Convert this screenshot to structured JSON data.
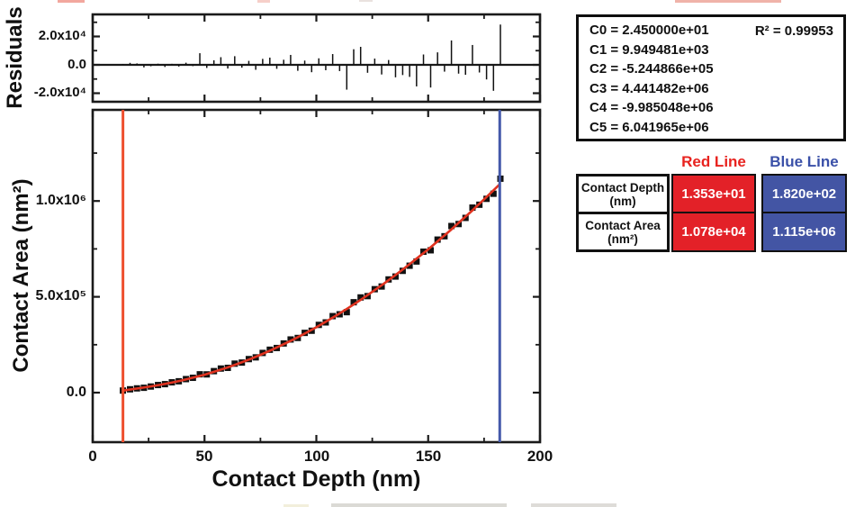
{
  "colors": {
    "frame": "#1a1a1a",
    "red_fill": "#e32128",
    "blue_fill": "#4355a4",
    "red_text": "#e8231f",
    "blue_text": "#3a50a8",
    "fit_line": "#e0321f",
    "red_vline": "#ee4f2e",
    "blue_vline": "#4459aa"
  },
  "chart_data": [
    {
      "type": "bar",
      "name": "fit-residuals",
      "ylabel": "Residuals",
      "y_tick_labels": [
        "2.0x10⁴",
        "0.0",
        "-2.0x10⁴"
      ],
      "y_tick_values": [
        20000,
        0,
        -20000
      ],
      "y_minor_tick_values": [
        30000,
        10000,
        -10000
      ],
      "xlim": [
        0,
        200
      ],
      "ylim": [
        -26000,
        35500
      ],
      "grid": false,
      "x": [
        13.5,
        16.7,
        19.8,
        22.9,
        26,
        29.2,
        32.3,
        35.4,
        38.5,
        41.7,
        44.8,
        47.9,
        51,
        54.2,
        57.3,
        60.4,
        63.5,
        66.7,
        69.8,
        72.9,
        76,
        79.2,
        82.3,
        85.4,
        88.5,
        91.7,
        94.8,
        97.9,
        101.1,
        104.2,
        107.3,
        110.4,
        113.6,
        116.7,
        119.8,
        122.9,
        126.1,
        129.2,
        132.3,
        135.4,
        138.6,
        141.7,
        144.8,
        147.9,
        151.1,
        154.2,
        157.3,
        160.4,
        163.6,
        166.7,
        169.8,
        172.9,
        176.1,
        179.2,
        182.3
      ],
      "values": [
        600,
        1400,
        1000,
        -1800,
        -1000,
        800,
        -1500,
        700,
        -1200,
        1500,
        -900,
        8200,
        -2200,
        3200,
        5400,
        -2600,
        6100,
        -2000,
        2800,
        -3500,
        4200,
        5100,
        -2800,
        3600,
        7000,
        -4200,
        3000,
        -5200,
        4600,
        -3800,
        7600,
        -4400,
        -17500,
        11000,
        12700,
        -5600,
        4400,
        -6800,
        3400,
        -8800,
        -7200,
        -8500,
        -15200,
        7300,
        -16000,
        8800,
        -4800,
        17200,
        -6200,
        -7000,
        14000,
        -5400,
        -10300,
        -18300,
        28400
      ]
    },
    {
      "type": "scatter",
      "name": "contact-area-vs-contact-depth",
      "xlabel": "Contact Depth (nm)",
      "ylabel": "Contact Area (nm²)",
      "x_tick_labels": [
        "0",
        "50",
        "100",
        "150",
        "200"
      ],
      "x_tick_values": [
        0,
        50,
        100,
        150,
        200
      ],
      "x_minor_tick_values": [
        25,
        75,
        125,
        175
      ],
      "y_tick_labels": [
        "1.0x10⁶",
        "5.0x10⁵",
        "0.0"
      ],
      "y_tick_values": [
        1000000,
        500000,
        0
      ],
      "y_minor_tick_values": [
        250000,
        750000,
        1250000
      ],
      "xlim": [
        0,
        200
      ],
      "ylim": [
        -263000,
        1488000
      ],
      "grid": false,
      "red_cursor_x": 13.53,
      "blue_cursor_x": 182.0,
      "scatter": [
        [
          13.5,
          10800
        ],
        [
          16.7,
          17460
        ],
        [
          19.8,
          22300
        ],
        [
          22.9,
          25258
        ],
        [
          26,
          31853
        ],
        [
          29.2,
          39635
        ],
        [
          32.3,
          44285
        ],
        [
          35.4,
          53837
        ],
        [
          38.5,
          59289
        ],
        [
          41.7,
          70588
        ],
        [
          44.8,
          77381
        ],
        [
          47.9,
          95674
        ],
        [
          51,
          95148
        ],
        [
          54.2,
          112214
        ],
        [
          57.3,
          125716
        ],
        [
          60.4,
          129276
        ],
        [
          63.5,
          151286
        ],
        [
          66.7,
          156924
        ],
        [
          69.8,
          175033
        ],
        [
          72.9,
          184012
        ],
        [
          76,
          207127
        ],
        [
          79.2,
          223939
        ],
        [
          82.3,
          232900
        ],
        [
          85.4,
          256665
        ],
        [
          88.5,
          277430
        ],
        [
          91.7,
          285256
        ],
        [
          94.8,
          311829
        ],
        [
          97.9,
          323002
        ],
        [
          101.1,
          353504
        ],
        [
          104.2,
          366460
        ],
        [
          107.3,
          399216
        ],
        [
          110.4,
          408833
        ],
        [
          113.6,
          419858
        ],
        [
          116.7,
          471730
        ],
        [
          119.8,
          496802
        ],
        [
          122.9,
          503646
        ],
        [
          126.1,
          539727
        ],
        [
          129.2,
          553794
        ],
        [
          132.3,
          590737
        ],
        [
          135.4,
          605795
        ],
        [
          138.6,
          635532
        ],
        [
          141.7,
          662288
        ],
        [
          144.8,
          684301
        ],
        [
          147.9,
          735513
        ],
        [
          151.1,
          742697
        ],
        [
          154.2,
          798590
        ],
        [
          157.3,
          816082
        ],
        [
          160.4,
          869390
        ],
        [
          163.6,
          879807
        ],
        [
          166.7,
          911767
        ],
        [
          169.8,
          965527
        ],
        [
          172.9,
          980553
        ],
        [
          176.1,
          1011307
        ],
        [
          179.2,
          1037846
        ],
        [
          182.3,
          1116400
        ]
      ],
      "fit": [
        [
          13.5,
          10200
        ],
        [
          15,
          13187
        ],
        [
          20,
          21637
        ],
        [
          25,
          30400
        ],
        [
          30,
          40330
        ],
        [
          35,
          51600
        ],
        [
          40,
          64046
        ],
        [
          45,
          78300
        ],
        [
          50,
          93702
        ],
        [
          55,
          111500
        ],
        [
          60,
          130159
        ],
        [
          65,
          151000
        ],
        [
          70,
          173092
        ],
        [
          75,
          197500
        ],
        [
          80,
          222817
        ],
        [
          85,
          250300
        ],
        [
          90,
          278832
        ],
        [
          95,
          309500
        ],
        [
          100,
          341326
        ],
        [
          105,
          375300
        ],
        [
          110,
          410217
        ],
        [
          115,
          447300
        ],
        [
          120,
          485610
        ],
        [
          125,
          525800
        ],
        [
          130,
          567114
        ],
        [
          135,
          610300
        ],
        [
          140,
          655042
        ],
        [
          145,
          700900
        ],
        [
          150,
          747664
        ],
        [
          155,
          797400
        ],
        [
          160,
          847963
        ],
        [
          165,
          900400
        ],
        [
          170,
          953641
        ],
        [
          175,
          1008900
        ],
        [
          180,
          1065060
        ],
        [
          182,
          1088000
        ]
      ]
    }
  ],
  "coefficients_box": {
    "lines": [
      "C0 = 2.450000e+01",
      "C1 = 9.949481e+03",
      "C2 = -5.244866e+05",
      "C3 = 4.441482e+06",
      "C4 = -9.985048e+06",
      "C5 = 6.041965e+06"
    ],
    "r_squared": "R² = 0.99953"
  },
  "results_table": {
    "headers": {
      "red": "Red Line",
      "blue": "Blue Line"
    },
    "rows": [
      {
        "label": "Contact Depth",
        "unit": "(nm)",
        "red": "1.353e+01",
        "blue": "1.820e+02"
      },
      {
        "label": "Contact Area",
        "unit": "(nm²)",
        "red": "1.078e+04",
        "blue": "1.115e+06"
      }
    ]
  }
}
